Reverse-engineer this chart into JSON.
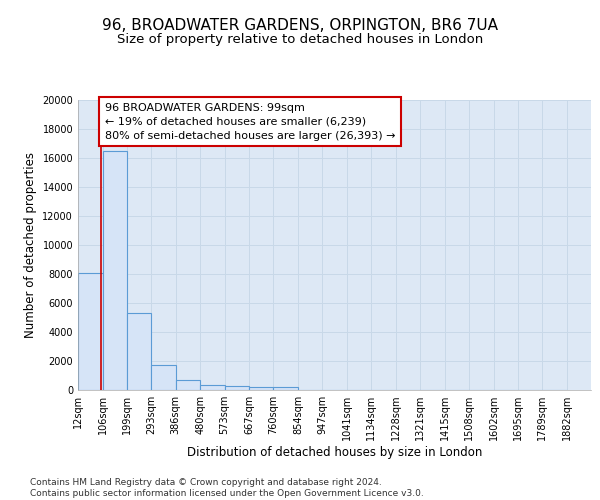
{
  "title": "96, BROADWATER GARDENS, ORPINGTON, BR6 7UA",
  "subtitle": "Size of property relative to detached houses in London",
  "xlabel": "Distribution of detached houses by size in London",
  "ylabel": "Number of detached properties",
  "footer_line1": "Contains HM Land Registry data © Crown copyright and database right 2024.",
  "footer_line2": "Contains public sector information licensed under the Open Government Licence v3.0.",
  "annotation_line1": "96 BROADWATER GARDENS: 99sqm",
  "annotation_line2": "← 19% of detached houses are smaller (6,239)",
  "annotation_line3": "80% of semi-detached houses are larger (26,393) →",
  "property_size": 99,
  "bar_edges": [
    12,
    106,
    199,
    293,
    386,
    480,
    573,
    667,
    760,
    854,
    947,
    1041,
    1134,
    1228,
    1321,
    1415,
    1508,
    1602,
    1695,
    1789,
    1882
  ],
  "bar_heights": [
    8100,
    16500,
    5300,
    1750,
    700,
    370,
    280,
    230,
    190,
    0,
    0,
    0,
    0,
    0,
    0,
    0,
    0,
    0,
    0,
    0
  ],
  "tick_labels": [
    "12sqm",
    "106sqm",
    "199sqm",
    "293sqm",
    "386sqm",
    "480sqm",
    "573sqm",
    "667sqm",
    "760sqm",
    "854sqm",
    "947sqm",
    "1041sqm",
    "1134sqm",
    "1228sqm",
    "1321sqm",
    "1415sqm",
    "1508sqm",
    "1602sqm",
    "1695sqm",
    "1789sqm",
    "1882sqm"
  ],
  "bar_facecolor": "#d6e4f7",
  "bar_edgecolor": "#5b9bd5",
  "bar_linewidth": 0.8,
  "vline_color": "#cc0000",
  "vline_linewidth": 1.2,
  "annotation_box_edgecolor": "#cc0000",
  "annotation_box_facecolor": "white",
  "grid_color": "#c8d8e8",
  "background_color": "#dde8f5",
  "ylim": [
    0,
    20000
  ],
  "yticks": [
    0,
    2000,
    4000,
    6000,
    8000,
    10000,
    12000,
    14000,
    16000,
    18000,
    20000
  ],
  "title_fontsize": 11,
  "subtitle_fontsize": 9.5,
  "xlabel_fontsize": 8.5,
  "ylabel_fontsize": 8.5,
  "tick_fontsize": 7,
  "annotation_fontsize": 8,
  "footer_fontsize": 6.5
}
